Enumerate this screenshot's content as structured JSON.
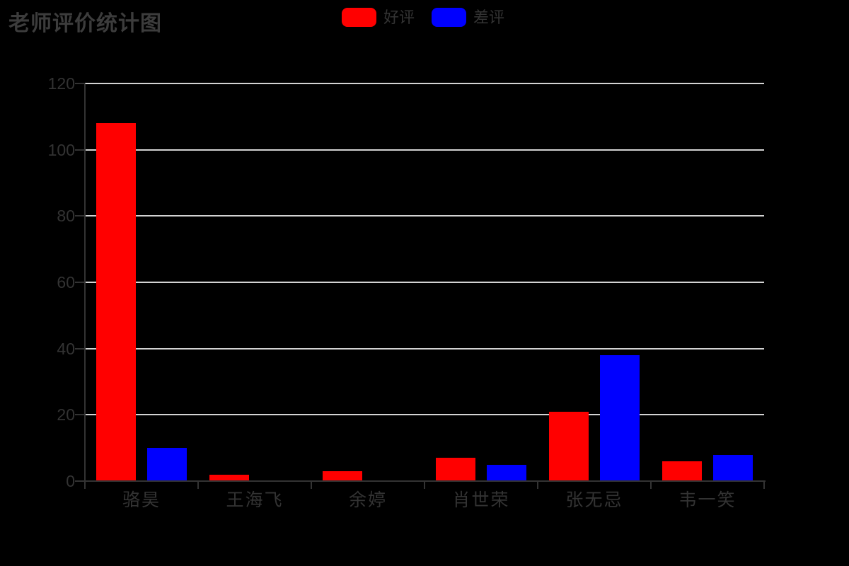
{
  "title": "老师评价统计图",
  "legend": {
    "items": [
      {
        "label": "好评",
        "color": "#FF0000"
      },
      {
        "label": "差评",
        "color": "#0000FF"
      }
    ]
  },
  "colors": {
    "background": "#000000",
    "title_text": "#3C3C3C",
    "axis_line": "#333333",
    "tick_text": "#333333",
    "grid_line": "#D3D3D3",
    "series_positive": "#FF0000",
    "series_negative": "#0000FF"
  },
  "chart_data": {
    "type": "bar",
    "title": "老师评价统计图",
    "categories": [
      "骆昊",
      "王海飞",
      "余婷",
      "肖世荣",
      "张无忌",
      "韦一笑"
    ],
    "series": [
      {
        "name": "好评",
        "color": "#FF0000",
        "values": [
          108,
          2,
          3,
          7,
          21,
          6
        ]
      },
      {
        "name": "差评",
        "color": "#0000FF",
        "values": [
          10,
          0,
          0,
          5,
          38,
          8
        ]
      }
    ],
    "xlabel": "",
    "ylabel": "",
    "ylim": [
      0,
      120
    ],
    "yticks": [
      0,
      20,
      40,
      60,
      80,
      100,
      120
    ],
    "grid": true,
    "legend_position": "top-center"
  }
}
